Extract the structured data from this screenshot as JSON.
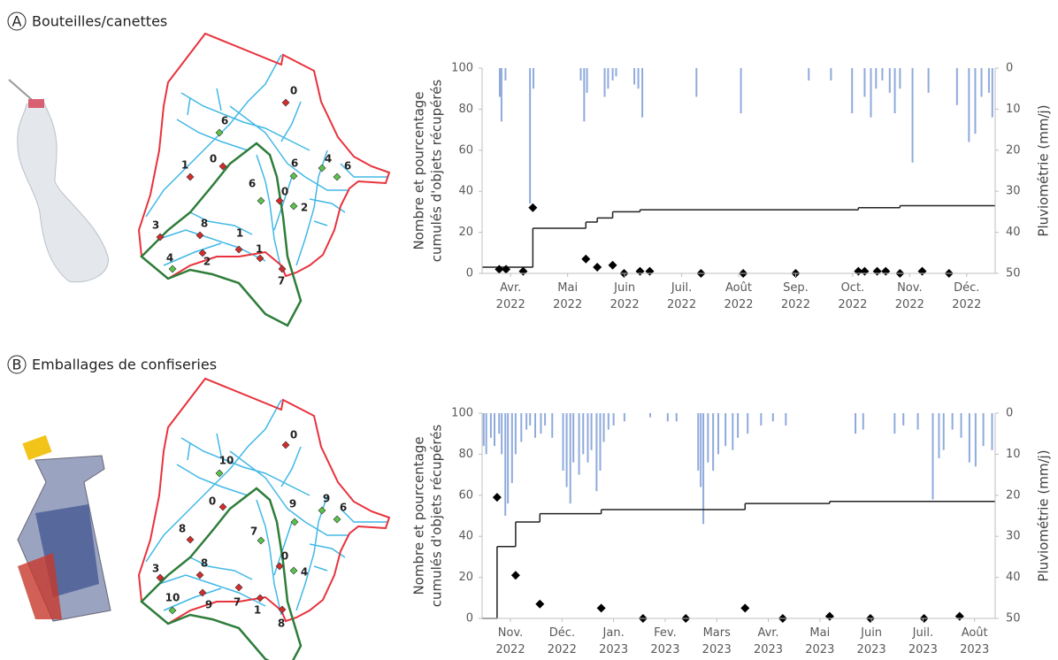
{
  "panels": [
    {
      "letter": "A",
      "title": "Bouteilles/canettes",
      "map_labels": [
        "0",
        "6",
        "0",
        "1",
        "6",
        "4",
        "6",
        "6",
        "0",
        "2",
        "3",
        "8",
        "1",
        "1",
        "2",
        "4",
        "7"
      ]
    },
    {
      "letter": "B",
      "title": "Emballages de confiseries",
      "map_labels": [
        "0",
        "10",
        "0",
        "8",
        "9",
        "9",
        "6",
        "7",
        "0",
        "4",
        "3",
        "8",
        "9",
        "7",
        "1",
        "8",
        "10"
      ]
    }
  ],
  "chart_data": [
    {
      "type": "combo",
      "xlim": [
        -0.5,
        8.5
      ],
      "xticks": [
        {
          "value": 0,
          "label": "Avr. 2022"
        },
        {
          "value": 1,
          "label": "Mai 2022"
        },
        {
          "value": 2,
          "label": "Juin 2022"
        },
        {
          "value": 3,
          "label": "Juil. 2022"
        },
        {
          "value": 4,
          "label": "Août 2022"
        },
        {
          "value": 5,
          "label": "Sep. 2022"
        },
        {
          "value": 6,
          "label": "Oct. 2022"
        },
        {
          "value": 7,
          "label": "Nov. 2022"
        },
        {
          "value": 8,
          "label": "Déc. 2022"
        }
      ],
      "ylim": [
        0,
        100
      ],
      "yticks": [
        0,
        20,
        40,
        60,
        80,
        100
      ],
      "ylabel": [
        "Nombre et pourcentage",
        "cumulés d'objets récupérés"
      ],
      "y2lim": [
        0,
        50
      ],
      "y2ticks": [
        0,
        10,
        20,
        30,
        40,
        50
      ],
      "y2_inverted": true,
      "y2label": "Pluviométrie (mm/j)",
      "series": [
        {
          "type": "bar",
          "axis": "y2",
          "color": "#8faadc",
          "x": [
            -0.19,
            -0.16,
            -0.09,
            0.34,
            0.4,
            1.23,
            1.29,
            1.34,
            1.65,
            1.71,
            1.79,
            1.85,
            2.17,
            2.24,
            2.31,
            3.26,
            4.04,
            5.23,
            5.62,
            5.99,
            6.21,
            6.32,
            6.41,
            6.52,
            6.65,
            6.74,
            6.83,
            7.05,
            7.33,
            7.83,
            8.04,
            8.15,
            8.26,
            8.39,
            8.45
          ],
          "values": [
            7,
            13,
            3,
            33,
            5,
            3,
            13,
            6,
            7,
            5,
            3,
            2,
            4,
            5,
            12,
            7,
            11,
            3,
            3,
            11,
            7,
            12,
            5,
            3,
            6,
            11,
            5,
            23,
            6,
            9,
            18,
            16,
            7,
            6,
            12
          ]
        },
        {
          "type": "line",
          "step": "post",
          "color": "#222222",
          "x": [
            -0.5,
            0.39,
            1.32,
            1.52,
            1.79,
            2.27,
            6.1,
            6.83,
            8.5
          ],
          "values": [
            3,
            22,
            25,
            27,
            30,
            31,
            32,
            33,
            33
          ]
        },
        {
          "type": "scatter",
          "marker": "diamond",
          "color": "#000000",
          "x": [
            -0.2,
            -0.08,
            0.22,
            0.39,
            1.32,
            1.52,
            1.79,
            1.99,
            2.27,
            2.44,
            3.34,
            4.08,
            5.0,
            6.1,
            6.21,
            6.43,
            6.58,
            6.83,
            7.22,
            7.69
          ],
          "values": [
            2,
            2,
            1,
            32,
            7,
            3,
            4,
            0,
            1,
            1,
            0,
            0,
            0,
            1,
            1,
            1,
            1,
            0,
            1,
            0
          ]
        }
      ]
    },
    {
      "type": "combo",
      "xlim": [
        -0.55,
        9.4
      ],
      "xticks": [
        {
          "value": 0,
          "label": "Nov. 2022"
        },
        {
          "value": 1,
          "label": "Déc. 2022"
        },
        {
          "value": 2,
          "label": "Jan. 2023"
        },
        {
          "value": 3,
          "label": "Fev. 2023"
        },
        {
          "value": 4,
          "label": "Mars 2023"
        },
        {
          "value": 5,
          "label": "Avr. 2023"
        },
        {
          "value": 6,
          "label": "Mai 2023"
        },
        {
          "value": 7,
          "label": "Juin 2023"
        },
        {
          "value": 8,
          "label": "Juil. 2023"
        },
        {
          "value": 9,
          "label": "Août 2023"
        }
      ],
      "ylim": [
        0,
        100
      ],
      "yticks": [
        0,
        20,
        40,
        60,
        80,
        100
      ],
      "ylabel": [
        "Nombre et pourcentage",
        "cumulés d'objets récupérés"
      ],
      "y2lim": [
        0,
        50
      ],
      "y2ticks": [
        0,
        10,
        20,
        30,
        40,
        50
      ],
      "y2_inverted": true,
      "y2label": "Pluviométrie (mm/j)",
      "series": [
        {
          "type": "bar",
          "axis": "y2",
          "color": "#8faadc",
          "x": [
            -0.52,
            -0.47,
            -0.38,
            -0.31,
            -0.22,
            -0.17,
            -0.1,
            -0.05,
            0.03,
            0.1,
            0.21,
            0.31,
            0.38,
            0.48,
            0.59,
            0.67,
            0.81,
            1.02,
            1.09,
            1.16,
            1.22,
            1.33,
            1.41,
            1.5,
            1.57,
            1.67,
            1.74,
            1.81,
            1.9,
            2.0,
            2.21,
            2.71,
            3.05,
            3.22,
            3.64,
            3.69,
            3.74,
            3.83,
            3.93,
            4.03,
            4.17,
            4.31,
            4.41,
            4.6,
            4.86,
            5.09,
            5.34,
            6.69,
            6.84,
            7.45,
            7.62,
            7.9,
            8.19,
            8.31,
            8.4,
            8.57,
            8.74,
            8.9,
            9.02,
            9.17,
            9.34
          ],
          "values": [
            8,
            10,
            6,
            8,
            5,
            10,
            25,
            22,
            17,
            10,
            7,
            4,
            3,
            6,
            5,
            3,
            6,
            14,
            18,
            22,
            12,
            15,
            10,
            12,
            9,
            19,
            14,
            7,
            4,
            3,
            2,
            1,
            2,
            2,
            14,
            18,
            27,
            12,
            14,
            10,
            8,
            9,
            6,
            5,
            3,
            2,
            3,
            5,
            4,
            5,
            3,
            4,
            21,
            11,
            9,
            4,
            6,
            12,
            13,
            8,
            9
          ]
        },
        {
          "type": "line",
          "step": "post",
          "color": "#222222",
          "x": [
            -0.55,
            -0.26,
            0.1,
            0.57,
            1.76,
            4.55,
            6.19,
            9.4
          ],
          "values": [
            0,
            35,
            47,
            51,
            53,
            56,
            57,
            57
          ]
        },
        {
          "type": "scatter",
          "marker": "diamond",
          "color": "#000000",
          "x": [
            -0.26,
            0.1,
            0.57,
            1.76,
            2.57,
            3.4,
            4.55,
            5.28,
            6.19,
            6.98,
            8.02,
            8.71
          ],
          "values": [
            59,
            21,
            7,
            5,
            0,
            0,
            5,
            0,
            1,
            0,
            0,
            1
          ]
        }
      ]
    }
  ]
}
